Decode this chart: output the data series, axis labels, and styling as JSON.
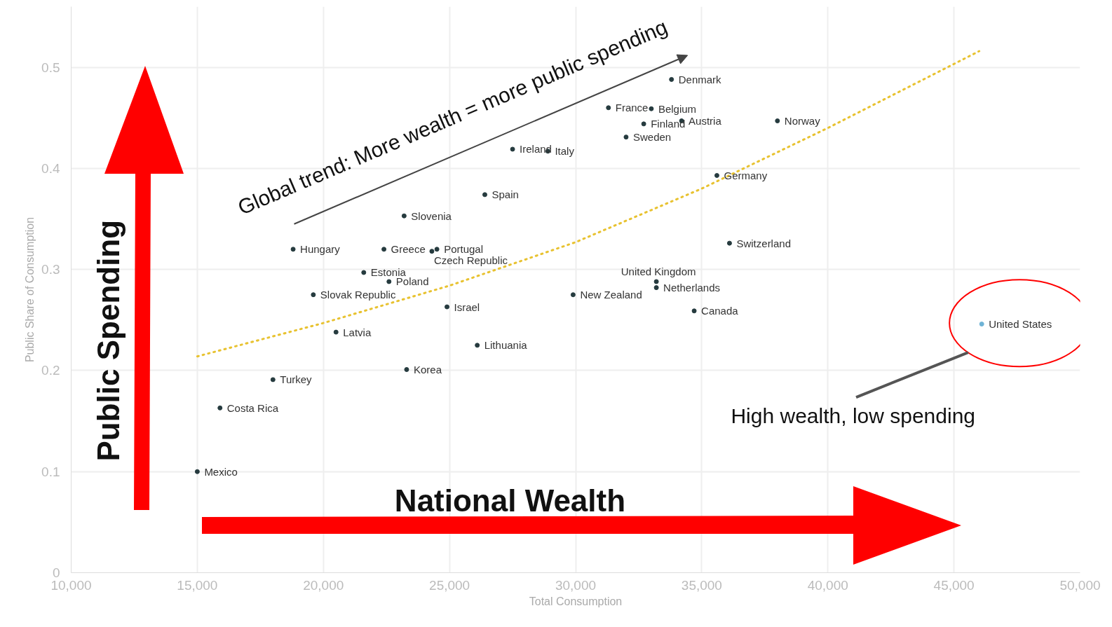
{
  "chart_data": {
    "type": "scatter",
    "xlabel": "Total Consumption",
    "ylabel": "Public Share of Consumption",
    "xlim": [
      10000,
      50000
    ],
    "ylim": [
      0,
      0.56
    ],
    "xticks": [
      {
        "value": 10000,
        "label": "10,000"
      },
      {
        "value": 15000,
        "label": "15,000"
      },
      {
        "value": 20000,
        "label": "20,000"
      },
      {
        "value": 25000,
        "label": "25,000"
      },
      {
        "value": 30000,
        "label": "30,000"
      },
      {
        "value": 35000,
        "label": "35,000"
      },
      {
        "value": 40000,
        "label": "40,000"
      },
      {
        "value": 45000,
        "label": "45,000"
      },
      {
        "value": 50000,
        "label": "50,000"
      }
    ],
    "yticks": [
      0,
      0.1,
      0.2,
      0.3,
      0.4,
      0.5
    ],
    "grid": true,
    "marker": "circle",
    "series": [
      {
        "x": [
          33800,
          31300,
          33000,
          32700,
          34200,
          38000,
          32000,
          27500,
          28900,
          35600,
          26400,
          23200,
          18800,
          22400,
          24300,
          24500,
          36100,
          21600,
          22600,
          33200,
          33200,
          19600,
          29900,
          24900,
          34700,
          46100,
          20500,
          26100,
          23300,
          18000,
          15900,
          15000
        ],
        "values": [
          0.488,
          0.46,
          0.459,
          0.444,
          0.447,
          0.447,
          0.431,
          0.419,
          0.417,
          0.393,
          0.374,
          0.353,
          0.32,
          0.32,
          0.318,
          0.32,
          0.326,
          0.297,
          0.288,
          0.288,
          0.282,
          0.275,
          0.275,
          0.263,
          0.259,
          0.246,
          0.238,
          0.225,
          0.201,
          0.191,
          0.163,
          0.1
        ],
        "colors": [
          "#263b3f",
          "#263b3f",
          "#263b3f",
          "#263b3f",
          "#263b3f",
          "#263b3f",
          "#263b3f",
          "#263b3f",
          "#263b3f",
          "#263b3f",
          "#263b3f",
          "#263b3f",
          "#263b3f",
          "#263b3f",
          "#263b3f",
          "#263b3f",
          "#263b3f",
          "#263b3f",
          "#263b3f",
          "#263b3f",
          "#263b3f",
          "#263b3f",
          "#263b3f",
          "#263b3f",
          "#263b3f",
          "#6fb3d6",
          "#263b3f",
          "#263b3f",
          "#263b3f",
          "#263b3f",
          "#263b3f",
          "#263b3f"
        ]
      },
      {
        "type": "line",
        "color": "#e8c230",
        "line_style": "dotted",
        "marker": "none",
        "x": [
          15000,
          20000,
          25000,
          30000,
          35000,
          40000,
          46000
        ],
        "values": [
          0.214,
          0.247,
          0.284,
          0.327,
          0.38,
          0.44,
          0.516
        ]
      }
    ],
    "annotations": [
      {
        "text": "Denmark",
        "x": 33800,
        "y": 0.488
      },
      {
        "text": "France",
        "x": 31300,
        "y": 0.46
      },
      {
        "text": "Belgium",
        "x": 33000,
        "y": 0.459
      },
      {
        "text": "Finland",
        "x": 32700,
        "y": 0.444
      },
      {
        "text": "Austria",
        "x": 34200,
        "y": 0.447
      },
      {
        "text": "Norway",
        "x": 38000,
        "y": 0.447
      },
      {
        "text": "Sweden",
        "x": 32000,
        "y": 0.431
      },
      {
        "text": "Ireland",
        "x": 27500,
        "y": 0.419
      },
      {
        "text": "Italy",
        "x": 28900,
        "y": 0.417
      },
      {
        "text": "Germany",
        "x": 35600,
        "y": 0.393
      },
      {
        "text": "Spain",
        "x": 26400,
        "y": 0.374
      },
      {
        "text": "Slovenia",
        "x": 23200,
        "y": 0.353
      },
      {
        "text": "Hungary",
        "x": 18800,
        "y": 0.32
      },
      {
        "text": "Greece",
        "x": 22400,
        "y": 0.32
      },
      {
        "text": "Czech Republic",
        "x": 24300,
        "y": 0.318
      },
      {
        "text": "Portugal",
        "x": 24500,
        "y": 0.32
      },
      {
        "text": "Switzerland",
        "x": 36100,
        "y": 0.326
      },
      {
        "text": "Estonia",
        "x": 21600,
        "y": 0.297
      },
      {
        "text": "Poland",
        "x": 22600,
        "y": 0.288
      },
      {
        "text": "United Kingdom",
        "x": 33200,
        "y": 0.288
      },
      {
        "text": "Netherlands",
        "x": 33200,
        "y": 0.282
      },
      {
        "text": "Slovak Republic",
        "x": 19600,
        "y": 0.275
      },
      {
        "text": "New Zealand",
        "x": 29900,
        "y": 0.275
      },
      {
        "text": "Israel",
        "x": 24900,
        "y": 0.263
      },
      {
        "text": "Canada",
        "x": 34700,
        "y": 0.259
      },
      {
        "text": "United States",
        "x": 46100,
        "y": 0.246
      },
      {
        "text": "Latvia",
        "x": 20500,
        "y": 0.238
      },
      {
        "text": "Lithuania",
        "x": 26100,
        "y": 0.225
      },
      {
        "text": "Korea",
        "x": 23300,
        "y": 0.201
      },
      {
        "text": "Turkey",
        "x": 18000,
        "y": 0.191
      },
      {
        "text": "Costa Rica",
        "x": 15900,
        "y": 0.163
      },
      {
        "text": "Mexico",
        "x": 15000,
        "y": 0.1
      },
      "Global trend: More wealth = more public spending",
      "Public Spending",
      "National Wealth",
      "High wealth, low spending"
    ]
  }
}
